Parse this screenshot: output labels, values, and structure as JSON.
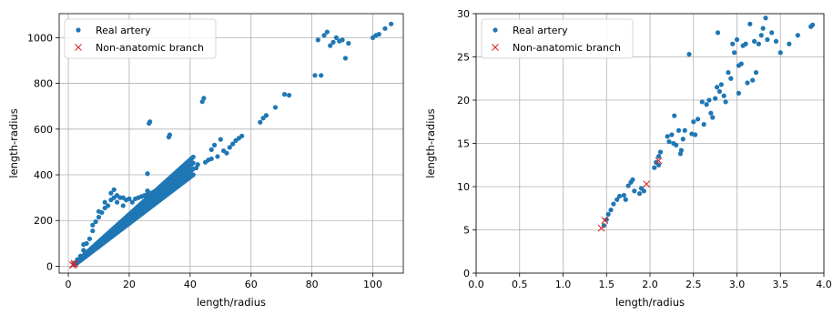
{
  "colors": {
    "real": "#1f77b4",
    "non_anatomic": "#d62728",
    "grid": "#b0b0b0"
  },
  "chart_data": [
    {
      "type": "scatter",
      "xlabel": "length/radius",
      "ylabel": "length-radius",
      "xlim": [
        -3,
        110
      ],
      "ylim": [
        -30,
        1105
      ],
      "xticks": [
        0,
        20,
        40,
        60,
        80,
        100
      ],
      "yticks": [
        0,
        200,
        400,
        600,
        800,
        1000
      ],
      "grid": true,
      "legend": {
        "placement": "top-left",
        "entries": [
          "Real artery",
          "Non-anatomic branch"
        ]
      },
      "series": [
        {
          "name": "Real artery",
          "marker": "dot",
          "dense_band": {
            "x_start": 2,
            "x_end": 41,
            "y_start": 5,
            "y_end": 400
          },
          "points": [
            [
              3,
              30
            ],
            [
              4,
              45
            ],
            [
              5,
              70
            ],
            [
              5,
              95
            ],
            [
              6,
              100
            ],
            [
              7,
              120
            ],
            [
              8,
              155
            ],
            [
              8,
              180
            ],
            [
              9,
              195
            ],
            [
              10,
              215
            ],
            [
              10,
              240
            ],
            [
              11,
              235
            ],
            [
              12,
              255
            ],
            [
              12,
              280
            ],
            [
              13,
              265
            ],
            [
              14,
              290
            ],
            [
              14,
              320
            ],
            [
              15,
              300
            ],
            [
              15,
              335
            ],
            [
              16,
              310
            ],
            [
              16,
              280
            ],
            [
              17,
              300
            ],
            [
              18,
              265
            ],
            [
              18,
              300
            ],
            [
              19,
              290
            ],
            [
              20,
              295
            ],
            [
              21,
              280
            ],
            [
              22,
              295
            ],
            [
              23,
              300
            ],
            [
              24,
              305
            ],
            [
              25,
              310
            ],
            [
              26,
              315
            ],
            [
              26,
              330
            ],
            [
              27,
              320
            ],
            [
              28,
              325
            ],
            [
              29,
              330
            ],
            [
              30,
              340
            ],
            [
              31,
              350
            ],
            [
              32,
              355
            ],
            [
              33,
              360
            ],
            [
              34,
              370
            ],
            [
              35,
              375
            ],
            [
              36,
              380
            ],
            [
              37,
              385
            ],
            [
              38,
              390
            ],
            [
              39,
              395
            ],
            [
              40,
              400
            ],
            [
              26,
              405
            ],
            [
              26.5,
              625
            ],
            [
              26.8,
              632
            ],
            [
              33,
              565
            ],
            [
              33.3,
              575
            ],
            [
              41,
              400
            ],
            [
              42,
              430
            ],
            [
              42.5,
              445
            ],
            [
              44,
              720
            ],
            [
              44.5,
              735
            ],
            [
              45,
              455
            ],
            [
              46,
              465
            ],
            [
              47,
              470
            ],
            [
              47,
              510
            ],
            [
              48,
              530
            ],
            [
              49,
              480
            ],
            [
              50,
              555
            ],
            [
              51,
              505
            ],
            [
              52,
              495
            ],
            [
              53,
              520
            ],
            [
              54,
              535
            ],
            [
              55,
              550
            ],
            [
              56,
              560
            ],
            [
              57,
              570
            ],
            [
              63,
              630
            ],
            [
              64,
              648
            ],
            [
              65,
              660
            ],
            [
              68,
              695
            ],
            [
              71,
              752
            ],
            [
              72.5,
              748
            ],
            [
              81,
              835
            ],
            [
              83,
              835
            ],
            [
              82,
              990
            ],
            [
              84,
              1010
            ],
            [
              85,
              1025
            ],
            [
              86,
              965
            ],
            [
              87,
              980
            ],
            [
              88,
              1000
            ],
            [
              89,
              985
            ],
            [
              90,
              990
            ],
            [
              91,
              910
            ],
            [
              92,
              975
            ],
            [
              100,
              1000
            ],
            [
              101,
              1010
            ],
            [
              102,
              1015
            ],
            [
              104,
              1040
            ],
            [
              106,
              1060
            ]
          ]
        },
        {
          "name": "Non-anatomic branch",
          "marker": "x",
          "points": [
            [
              1.5,
              5
            ],
            [
              1.5,
              7
            ],
            [
              2,
              10
            ],
            [
              2,
              13
            ]
          ]
        }
      ]
    },
    {
      "type": "scatter",
      "xlabel": "length/radius",
      "ylabel": "length-radius",
      "xlim": [
        0,
        4
      ],
      "ylim": [
        0,
        30
      ],
      "xticks": [
        0.0,
        0.5,
        1.0,
        1.5,
        2.0,
        2.5,
        3.0,
        3.5,
        4.0
      ],
      "xtick_labels": [
        "0.0",
        "0.5",
        "1.0",
        "1.5",
        "2.0",
        "2.5",
        "3.0",
        "3.5",
        "4.0"
      ],
      "yticks": [
        0,
        5,
        10,
        15,
        20,
        25,
        30
      ],
      "grid": true,
      "legend": {
        "placement": "top-left",
        "entries": [
          "Real artery",
          "Non-anatomic branch"
        ]
      },
      "series": [
        {
          "name": "Real artery",
          "marker": "dot",
          "points": [
            [
              1.47,
              5.5
            ],
            [
              1.5,
              6.2
            ],
            [
              1.52,
              6.8
            ],
            [
              1.55,
              7.3
            ],
            [
              1.58,
              8.0
            ],
            [
              1.62,
              8.5
            ],
            [
              1.65,
              8.9
            ],
            [
              1.7,
              9.0
            ],
            [
              1.72,
              8.5
            ],
            [
              1.75,
              10.1
            ],
            [
              1.78,
              10.5
            ],
            [
              1.8,
              10.8
            ],
            [
              1.82,
              9.5
            ],
            [
              1.88,
              9.2
            ],
            [
              1.9,
              9.8
            ],
            [
              1.93,
              9.5
            ],
            [
              2.05,
              12.2
            ],
            [
              2.07,
              12.8
            ],
            [
              2.1,
              13.5
            ],
            [
              2.12,
              14.0
            ],
            [
              2.1,
              12.5
            ],
            [
              2.2,
              15.8
            ],
            [
              2.22,
              15.2
            ],
            [
              2.25,
              16.0
            ],
            [
              2.27,
              15.0
            ],
            [
              2.28,
              18.2
            ],
            [
              2.3,
              14.8
            ],
            [
              2.33,
              16.5
            ],
            [
              2.35,
              13.8
            ],
            [
              2.36,
              14.2
            ],
            [
              2.38,
              15.5
            ],
            [
              2.4,
              16.5
            ],
            [
              2.45,
              25.3
            ],
            [
              2.48,
              16.1
            ],
            [
              2.5,
              17.5
            ],
            [
              2.52,
              16.0
            ],
            [
              2.55,
              17.8
            ],
            [
              2.6,
              19.8
            ],
            [
              2.62,
              17.2
            ],
            [
              2.65,
              19.5
            ],
            [
              2.68,
              20.0
            ],
            [
              2.7,
              18.5
            ],
            [
              2.72,
              18.0
            ],
            [
              2.75,
              20.2
            ],
            [
              2.77,
              21.5
            ],
            [
              2.78,
              27.8
            ],
            [
              2.8,
              21.0
            ],
            [
              2.82,
              21.8
            ],
            [
              2.85,
              20.5
            ],
            [
              2.87,
              19.8
            ],
            [
              2.9,
              23.2
            ],
            [
              2.93,
              22.5
            ],
            [
              2.95,
              26.5
            ],
            [
              2.97,
              25.5
            ],
            [
              3.0,
              27.0
            ],
            [
              3.02,
              20.8
            ],
            [
              3.02,
              24.0
            ],
            [
              3.05,
              24.2
            ],
            [
              3.07,
              26.3
            ],
            [
              3.1,
              26.5
            ],
            [
              3.12,
              22.0
            ],
            [
              3.15,
              28.8
            ],
            [
              3.18,
              22.3
            ],
            [
              3.2,
              26.8
            ],
            [
              3.22,
              23.2
            ],
            [
              3.25,
              26.5
            ],
            [
              3.28,
              27.5
            ],
            [
              3.3,
              28.3
            ],
            [
              3.33,
              29.5
            ],
            [
              3.35,
              27.0
            ],
            [
              3.4,
              27.8
            ],
            [
              3.45,
              26.8
            ],
            [
              3.5,
              25.5
            ],
            [
              3.6,
              26.5
            ],
            [
              3.7,
              27.5
            ],
            [
              3.85,
              28.5
            ],
            [
              3.87,
              28.7
            ]
          ]
        },
        {
          "name": "Non-anatomic branch",
          "marker": "x",
          "points": [
            [
              1.44,
              5.2
            ],
            [
              1.48,
              6.1
            ],
            [
              1.96,
              10.3
            ],
            [
              2.1,
              13.0
            ]
          ]
        }
      ]
    }
  ]
}
